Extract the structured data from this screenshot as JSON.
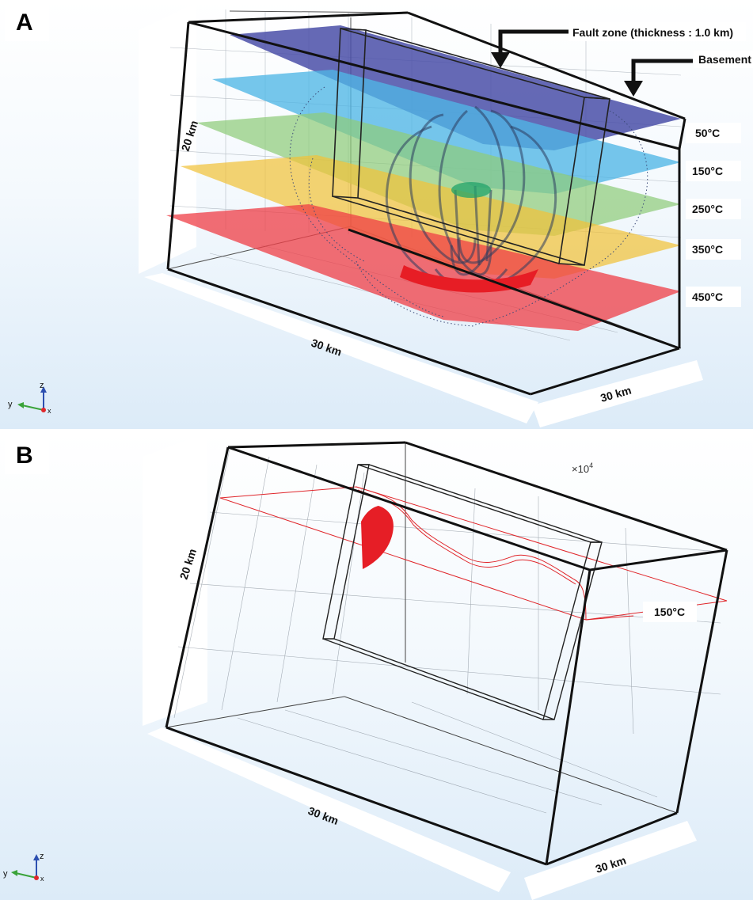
{
  "panel_a": {
    "letter": "A",
    "annotations": {
      "fault_zone": "Fault zone (thickness : 1.0 km)",
      "basement": "Basement"
    },
    "dimensions": {
      "height": "20 km",
      "length": "30 km",
      "width": "30 km"
    },
    "isotherms": [
      {
        "label": "50°C",
        "color": "#4a4fa8"
      },
      {
        "label": "150°C",
        "color": "#4fb6e6"
      },
      {
        "label": "250°C",
        "color": "#8fcc7a"
      },
      {
        "label": "350°C",
        "color": "#f1c23a"
      },
      {
        "label": "450°C",
        "color": "#ef3e45"
      }
    ],
    "axes": {
      "y": "y",
      "z": "z",
      "x": "x"
    }
  },
  "panel_b": {
    "letter": "B",
    "multiplier": "×10",
    "multiplier_exp": "4",
    "dimensions": {
      "height": "20 km",
      "length": "30 km",
      "width": "30 km"
    },
    "isotherm": {
      "label": "150°C",
      "color": "#e0262b"
    },
    "axes": {
      "y": "y",
      "z": "z",
      "x": "x"
    }
  }
}
